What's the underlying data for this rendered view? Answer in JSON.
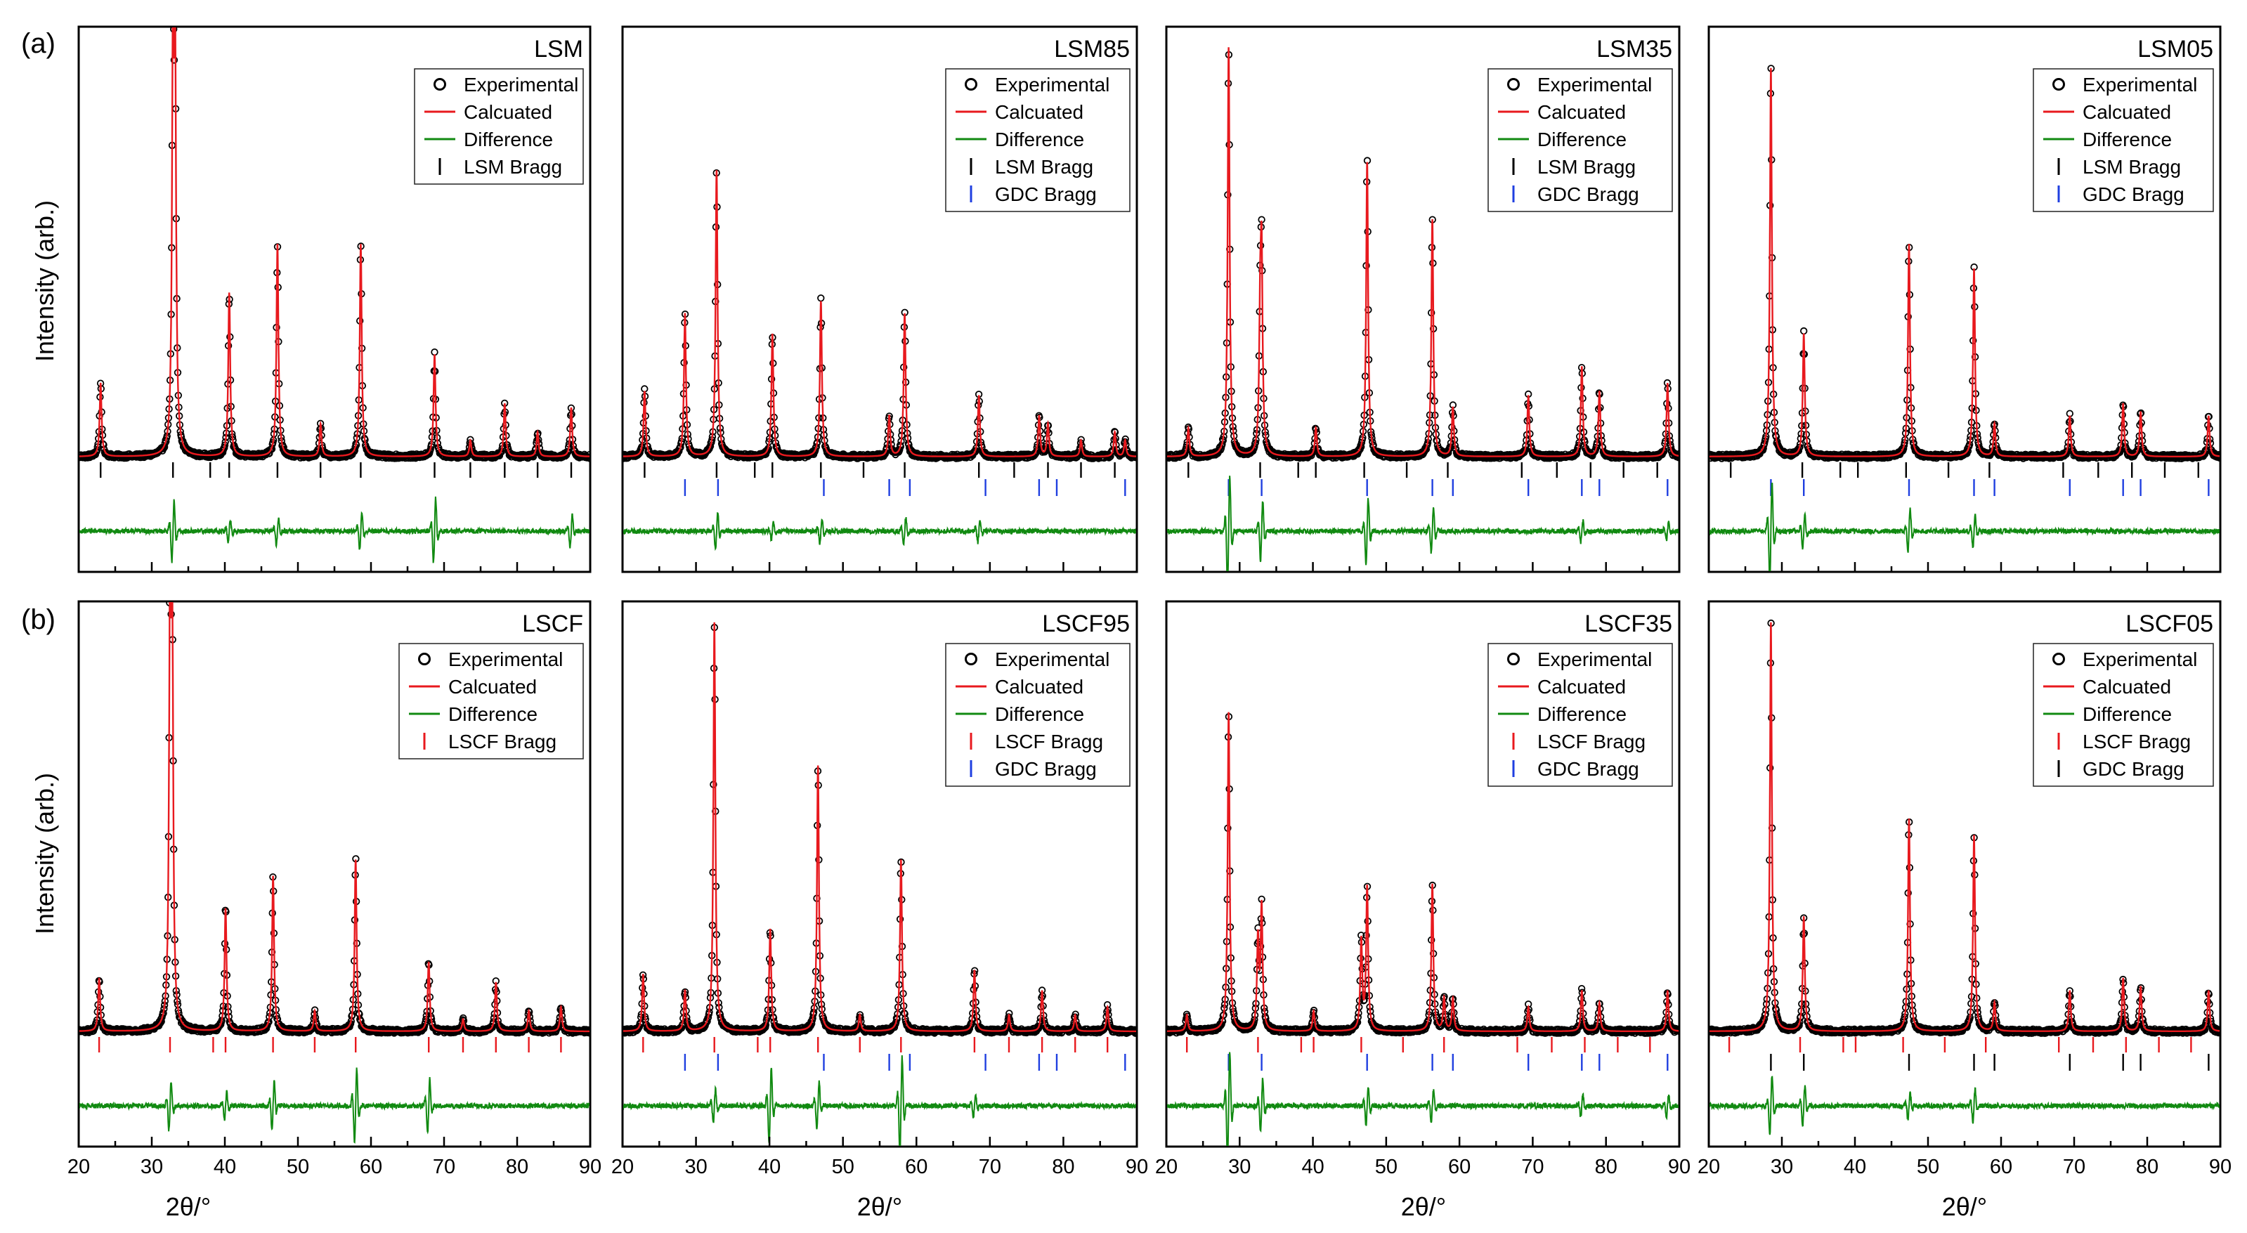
{
  "figure": {
    "row_labels": [
      "(a)",
      "(b)"
    ],
    "ylabel": "Intensity (arb.)",
    "xlabel": "2θ/°"
  },
  "colors": {
    "experimental": "#000000",
    "calculated": "#e8191e",
    "difference": "#118a11",
    "lsm_bragg": "#000000",
    "gdc_bragg": "#1f3fe0",
    "lscf_bragg": "#e8191e",
    "frame": "#000000"
  },
  "chart_data": [
    {
      "type": "scatter",
      "title": "LSM",
      "xlabel": "",
      "ylabel": "Intensity (arb.)",
      "xlim": [
        20,
        90
      ],
      "legend": [
        "Experimental",
        "Calcuated",
        "Difference",
        "LSM Bragg"
      ],
      "bragg": [
        {
          "name": "LSM Bragg",
          "color": "lsm_bragg",
          "positions": [
            23.0,
            32.9,
            38.0,
            40.6,
            47.2,
            53.1,
            58.6,
            68.7,
            73.6,
            78.3,
            82.8,
            87.4
          ]
        }
      ],
      "peaks": [
        {
          "x": 23.0,
          "h": 0.18
        },
        {
          "x": 32.9,
          "h": 0.95
        },
        {
          "x": 33.2,
          "h": 0.88
        },
        {
          "x": 40.6,
          "h": 0.4
        },
        {
          "x": 47.2,
          "h": 0.52
        },
        {
          "x": 53.1,
          "h": 0.08
        },
        {
          "x": 58.6,
          "h": 0.52
        },
        {
          "x": 68.7,
          "h": 0.25
        },
        {
          "x": 73.6,
          "h": 0.04
        },
        {
          "x": 78.3,
          "h": 0.13
        },
        {
          "x": 82.8,
          "h": 0.06
        },
        {
          "x": 87.4,
          "h": 0.12
        }
      ],
      "difference_spikes": [
        {
          "x": 32.9,
          "a": 0.55
        },
        {
          "x": 40.6,
          "a": 0.2
        },
        {
          "x": 47.2,
          "a": 0.25
        },
        {
          "x": 58.6,
          "a": 0.35
        },
        {
          "x": 68.7,
          "a": 0.6
        },
        {
          "x": 87.4,
          "a": 0.3
        }
      ]
    },
    {
      "type": "scatter",
      "title": "LSM85",
      "xlabel": "",
      "ylabel": "",
      "xlim": [
        20,
        90
      ],
      "legend": [
        "Experimental",
        "Calcuated",
        "Difference",
        "LSM Bragg",
        "GDC Bragg"
      ],
      "bragg": [
        {
          "name": "LSM Bragg",
          "color": "lsm_bragg",
          "positions": [
            23.0,
            32.8,
            38.0,
            40.4,
            47.0,
            52.8,
            58.4,
            68.5,
            73.3,
            77.9,
            82.4,
            87.0
          ]
        },
        {
          "name": "GDC Bragg",
          "color": "gdc_bragg",
          "positions": [
            28.5,
            33.0,
            47.4,
            56.3,
            59.1,
            69.4,
            76.7,
            79.1,
            88.4
          ]
        }
      ],
      "peaks": [
        {
          "x": 23.0,
          "h": 0.16
        },
        {
          "x": 28.5,
          "h": 0.35
        },
        {
          "x": 32.8,
          "h": 0.7
        },
        {
          "x": 40.4,
          "h": 0.3
        },
        {
          "x": 47.0,
          "h": 0.38
        },
        {
          "x": 56.3,
          "h": 0.1
        },
        {
          "x": 58.4,
          "h": 0.35
        },
        {
          "x": 68.5,
          "h": 0.15
        },
        {
          "x": 76.7,
          "h": 0.1
        },
        {
          "x": 77.9,
          "h": 0.08
        },
        {
          "x": 82.4,
          "h": 0.04
        },
        {
          "x": 87.0,
          "h": 0.06
        },
        {
          "x": 88.4,
          "h": 0.04
        }
      ],
      "difference_spikes": [
        {
          "x": 32.8,
          "a": 0.35
        },
        {
          "x": 40.4,
          "a": 0.15
        },
        {
          "x": 47.0,
          "a": 0.25
        },
        {
          "x": 58.4,
          "a": 0.25
        },
        {
          "x": 68.5,
          "a": 0.2
        }
      ]
    },
    {
      "type": "scatter",
      "title": "LSM35",
      "xlabel": "",
      "ylabel": "",
      "xlim": [
        20,
        90
      ],
      "legend": [
        "Experimental",
        "Calcuated",
        "Difference",
        "LSM Bragg",
        "GDC Bragg"
      ],
      "bragg": [
        {
          "name": "LSM Bragg",
          "color": "lsm_bragg",
          "positions": [
            23.0,
            32.8,
            38.0,
            40.4,
            47.0,
            52.8,
            58.4,
            68.5,
            73.3,
            77.9,
            82.4,
            87.0
          ]
        },
        {
          "name": "GDC Bragg",
          "color": "gdc_bragg",
          "positions": [
            28.5,
            33.0,
            47.4,
            56.3,
            59.1,
            69.4,
            76.7,
            79.1,
            88.4
          ]
        }
      ],
      "peaks": [
        {
          "x": 23.0,
          "h": 0.07
        },
        {
          "x": 28.5,
          "h": 1.0
        },
        {
          "x": 32.8,
          "h": 0.3
        },
        {
          "x": 33.0,
          "h": 0.45
        },
        {
          "x": 40.4,
          "h": 0.07
        },
        {
          "x": 47.4,
          "h": 0.72
        },
        {
          "x": 56.3,
          "h": 0.58
        },
        {
          "x": 59.1,
          "h": 0.12
        },
        {
          "x": 69.4,
          "h": 0.15
        },
        {
          "x": 76.7,
          "h": 0.22
        },
        {
          "x": 79.1,
          "h": 0.16
        },
        {
          "x": 88.4,
          "h": 0.18
        }
      ],
      "difference_spikes": [
        {
          "x": 28.5,
          "a": 1.0
        },
        {
          "x": 33.0,
          "a": 0.55
        },
        {
          "x": 47.4,
          "a": 0.6
        },
        {
          "x": 56.3,
          "a": 0.4
        },
        {
          "x": 76.7,
          "a": 0.2
        },
        {
          "x": 88.4,
          "a": 0.15
        }
      ]
    },
    {
      "type": "scatter",
      "title": "LSM05",
      "xlabel": "",
      "ylabel": "",
      "xlim": [
        20,
        90
      ],
      "legend": [
        "Experimental",
        "Calcuated",
        "Difference",
        "LSM Bragg",
        "GDC Bragg"
      ],
      "bragg": [
        {
          "name": "LSM Bragg",
          "color": "lsm_bragg",
          "positions": [
            23.0,
            32.8,
            38.0,
            40.4,
            47.0,
            52.8,
            58.4,
            68.5,
            73.3,
            77.9,
            82.4,
            87.0
          ]
        },
        {
          "name": "GDC Bragg",
          "color": "gdc_bragg",
          "positions": [
            28.5,
            33.0,
            47.4,
            56.3,
            59.1,
            69.4,
            76.7,
            79.1,
            88.4
          ]
        }
      ],
      "peaks": [
        {
          "x": 28.5,
          "h": 0.95
        },
        {
          "x": 33.0,
          "h": 0.3
        },
        {
          "x": 47.4,
          "h": 0.52
        },
        {
          "x": 56.3,
          "h": 0.46
        },
        {
          "x": 59.1,
          "h": 0.08
        },
        {
          "x": 69.4,
          "h": 0.1
        },
        {
          "x": 76.7,
          "h": 0.13
        },
        {
          "x": 79.1,
          "h": 0.11
        },
        {
          "x": 88.4,
          "h": 0.1
        }
      ],
      "difference_spikes": [
        {
          "x": 28.5,
          "a": 0.9
        },
        {
          "x": 33.0,
          "a": 0.3
        },
        {
          "x": 47.4,
          "a": 0.4
        },
        {
          "x": 56.3,
          "a": 0.3
        }
      ]
    },
    {
      "type": "scatter",
      "title": "LSCF",
      "xlabel": "2θ/°",
      "ylabel": "Intensity (arb.)",
      "xlim": [
        20,
        90
      ],
      "legend": [
        "Experimental",
        "Calcuated",
        "Difference",
        "LSCF Bragg"
      ],
      "bragg": [
        {
          "name": "LSCF Bragg",
          "color": "lscf_bragg",
          "positions": [
            22.8,
            32.5,
            38.4,
            40.1,
            46.6,
            52.3,
            57.9,
            67.9,
            72.6,
            77.1,
            81.6,
            86.0
          ]
        }
      ],
      "peaks": [
        {
          "x": 22.8,
          "h": 0.13
        },
        {
          "x": 32.5,
          "h": 1.0
        },
        {
          "x": 32.8,
          "h": 0.9
        },
        {
          "x": 40.1,
          "h": 0.3
        },
        {
          "x": 46.6,
          "h": 0.38
        },
        {
          "x": 52.3,
          "h": 0.05
        },
        {
          "x": 57.9,
          "h": 0.42
        },
        {
          "x": 67.9,
          "h": 0.17
        },
        {
          "x": 72.6,
          "h": 0.03
        },
        {
          "x": 77.1,
          "h": 0.12
        },
        {
          "x": 81.6,
          "h": 0.05
        },
        {
          "x": 86.0,
          "h": 0.06
        }
      ],
      "difference_spikes": [
        {
          "x": 32.5,
          "a": 0.45
        },
        {
          "x": 40.1,
          "a": 0.25
        },
        {
          "x": 46.6,
          "a": 0.45
        },
        {
          "x": 57.9,
          "a": 0.7
        },
        {
          "x": 67.9,
          "a": 0.5
        }
      ]
    },
    {
      "type": "scatter",
      "title": "LSCF95",
      "xlabel": "2θ/°",
      "ylabel": "",
      "xlim": [
        20,
        90
      ],
      "legend": [
        "Experimental",
        "Calcuated",
        "Difference",
        "LSCF Bragg",
        "GDC Bragg"
      ],
      "bragg": [
        {
          "name": "LSCF Bragg",
          "color": "lscf_bragg",
          "positions": [
            22.8,
            32.5,
            38.4,
            40.1,
            46.6,
            52.3,
            57.9,
            67.9,
            72.6,
            77.1,
            81.6,
            86.0
          ]
        },
        {
          "name": "GDC Bragg",
          "color": "gdc_bragg",
          "positions": [
            28.5,
            33.0,
            47.4,
            56.3,
            59.1,
            69.4,
            76.7,
            79.1,
            88.4
          ]
        }
      ],
      "peaks": [
        {
          "x": 22.8,
          "h": 0.14
        },
        {
          "x": 28.5,
          "h": 0.1
        },
        {
          "x": 32.5,
          "h": 1.0
        },
        {
          "x": 40.1,
          "h": 0.25
        },
        {
          "x": 46.6,
          "h": 0.65
        },
        {
          "x": 52.3,
          "h": 0.04
        },
        {
          "x": 57.9,
          "h": 0.42
        },
        {
          "x": 67.9,
          "h": 0.15
        },
        {
          "x": 72.6,
          "h": 0.04
        },
        {
          "x": 77.1,
          "h": 0.1
        },
        {
          "x": 81.6,
          "h": 0.04
        },
        {
          "x": 86.0,
          "h": 0.06
        }
      ],
      "difference_spikes": [
        {
          "x": 32.5,
          "a": 0.3
        },
        {
          "x": 40.1,
          "a": 0.7
        },
        {
          "x": 46.6,
          "a": 0.45
        },
        {
          "x": 57.9,
          "a": 0.9
        },
        {
          "x": 67.9,
          "a": 0.2
        }
      ]
    },
    {
      "type": "scatter",
      "title": "LSCF35",
      "xlabel": "2θ/°",
      "ylabel": "",
      "xlim": [
        20,
        90
      ],
      "legend": [
        "Experimental",
        "Calcuated",
        "Difference",
        "LSCF Bragg",
        "GDC Bragg"
      ],
      "bragg": [
        {
          "name": "LSCF Bragg",
          "color": "lscf_bragg",
          "positions": [
            22.8,
            32.5,
            38.4,
            40.1,
            46.6,
            52.3,
            57.9,
            67.9,
            72.6,
            77.1,
            81.6,
            86.0
          ]
        },
        {
          "name": "GDC Bragg",
          "color": "gdc_bragg",
          "positions": [
            28.5,
            33.0,
            47.4,
            56.3,
            59.1,
            69.4,
            76.7,
            79.1,
            88.4
          ]
        }
      ],
      "peaks": [
        {
          "x": 22.8,
          "h": 0.04
        },
        {
          "x": 28.5,
          "h": 0.78
        },
        {
          "x": 32.5,
          "h": 0.22
        },
        {
          "x": 33.0,
          "h": 0.3
        },
        {
          "x": 40.1,
          "h": 0.05
        },
        {
          "x": 46.6,
          "h": 0.22
        },
        {
          "x": 47.4,
          "h": 0.35
        },
        {
          "x": 56.3,
          "h": 0.36
        },
        {
          "x": 57.9,
          "h": 0.08
        },
        {
          "x": 59.1,
          "h": 0.08
        },
        {
          "x": 69.4,
          "h": 0.06
        },
        {
          "x": 76.7,
          "h": 0.1
        },
        {
          "x": 79.1,
          "h": 0.07
        },
        {
          "x": 88.4,
          "h": 0.1
        }
      ],
      "difference_spikes": [
        {
          "x": 28.5,
          "a": 1.0
        },
        {
          "x": 33.0,
          "a": 0.5
        },
        {
          "x": 47.4,
          "a": 0.35
        },
        {
          "x": 56.3,
          "a": 0.3
        },
        {
          "x": 76.7,
          "a": 0.2
        },
        {
          "x": 88.4,
          "a": 0.2
        }
      ]
    },
    {
      "type": "scatter",
      "title": "LSCF05",
      "xlabel": "2θ/°",
      "ylabel": "",
      "xlim": [
        20,
        90
      ],
      "legend": [
        "Experimental",
        "Calcuated",
        "Difference",
        "LSCF Bragg",
        "GDC Bragg"
      ],
      "bragg": [
        {
          "name": "LSCF Bragg",
          "color": "lscf_bragg",
          "positions": [
            22.8,
            32.5,
            38.4,
            40.1,
            46.6,
            52.3,
            57.9,
            67.9,
            72.6,
            77.1,
            81.6,
            86.0
          ]
        },
        {
          "name": "GDC Bragg",
          "color": "lsm_bragg",
          "positions": [
            28.5,
            33.0,
            47.4,
            56.3,
            59.1,
            69.4,
            76.7,
            79.1,
            88.4
          ]
        }
      ],
      "peaks": [
        {
          "x": 28.5,
          "h": 1.0
        },
        {
          "x": 33.0,
          "h": 0.28
        },
        {
          "x": 47.4,
          "h": 0.52
        },
        {
          "x": 56.3,
          "h": 0.48
        },
        {
          "x": 59.1,
          "h": 0.07
        },
        {
          "x": 69.4,
          "h": 0.1
        },
        {
          "x": 76.7,
          "h": 0.13
        },
        {
          "x": 79.1,
          "h": 0.11
        },
        {
          "x": 88.4,
          "h": 0.1
        }
      ],
      "difference_spikes": [
        {
          "x": 28.5,
          "a": 0.55
        },
        {
          "x": 33.0,
          "a": 0.35
        },
        {
          "x": 47.4,
          "a": 0.25
        },
        {
          "x": 56.3,
          "a": 0.3
        }
      ]
    }
  ],
  "x_ticks": [
    20,
    30,
    40,
    50,
    60,
    70,
    80,
    90
  ]
}
